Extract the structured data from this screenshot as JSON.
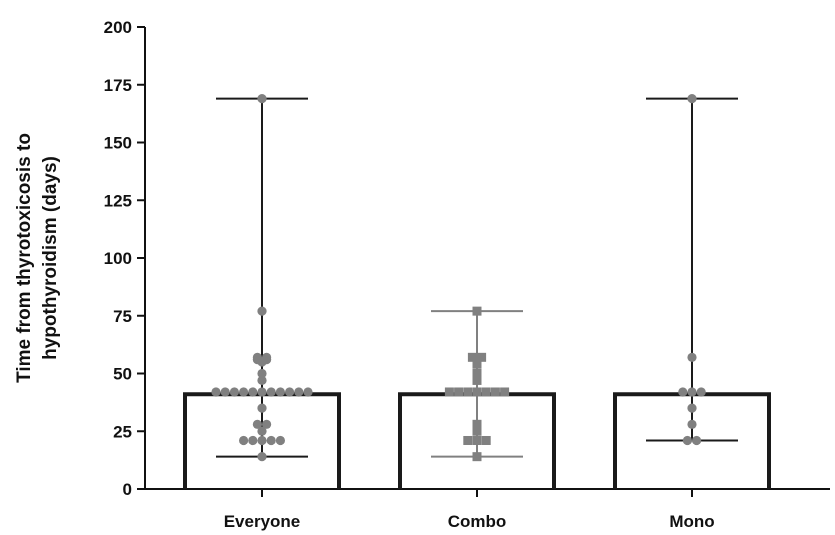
{
  "chart_data": {
    "type": "bar",
    "title": "",
    "ylabel_lines": [
      "Time from thyrotoxicosis to",
      "hypothyroidism (days)"
    ],
    "xlabel": "",
    "ylim": [
      0,
      200
    ],
    "yticks": [
      0,
      25,
      50,
      75,
      100,
      125,
      150,
      175,
      200
    ],
    "grid": false,
    "categories": [
      "Everyone",
      "Combo",
      "Mono"
    ],
    "series": [
      {
        "values": [
          41,
          41,
          41
        ],
        "range_min": [
          14,
          14,
          21
        ],
        "range_max": [
          169,
          77,
          169
        ],
        "point_marker": [
          "circle",
          "square",
          "circle"
        ],
        "point_color": [
          "#808080",
          "#808080",
          "#808080"
        ],
        "points": [
          [
            169,
            77,
            57,
            57,
            56,
            56,
            55,
            50,
            47,
            42,
            42,
            42,
            42,
            42,
            42,
            42,
            42,
            42,
            42,
            42,
            35,
            28,
            28,
            25,
            21,
            21,
            21,
            21,
            21,
            14
          ],
          [
            77,
            57,
            57,
            56,
            55,
            54,
            50,
            47,
            42,
            42,
            42,
            42,
            42,
            42,
            42,
            28,
            25,
            21,
            21,
            21,
            14
          ],
          [
            169,
            57,
            42,
            42,
            42,
            35,
            28,
            21,
            21
          ]
        ]
      }
    ],
    "colors": {
      "bar_edge": "#1a1a1a",
      "range": "#1a1a1a",
      "range_combo": "#808080",
      "points": "#808080"
    }
  }
}
